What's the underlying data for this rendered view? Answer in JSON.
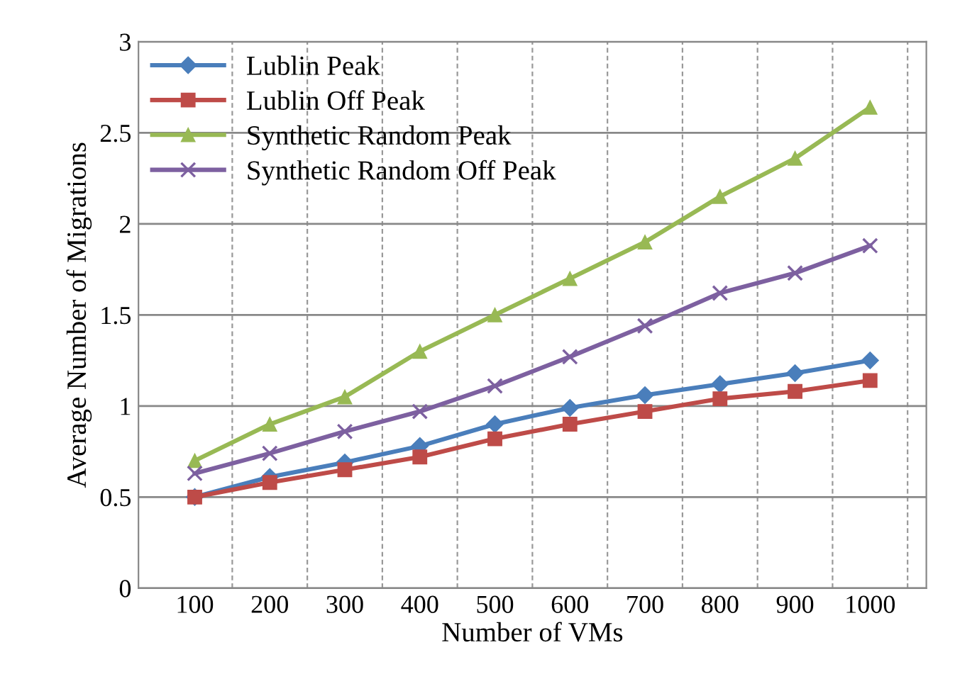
{
  "chart_data": {
    "type": "line",
    "xlabel": "Number of VMs",
    "ylabel": "Average Number of Migrations",
    "categories": [
      "100",
      "200",
      "300",
      "400",
      "500",
      "600",
      "700",
      "800",
      "900",
      "1000"
    ],
    "ylim": [
      0,
      3
    ],
    "yticks": [
      0,
      0.5,
      1,
      1.5,
      2,
      2.5,
      3
    ],
    "grid": true,
    "legend": "top left",
    "series": [
      {
        "name": "Lublin Peak",
        "color": "#4a7ebb",
        "marker": "diamond",
        "values": [
          0.5,
          0.61,
          0.69,
          0.78,
          0.9,
          0.99,
          1.06,
          1.12,
          1.18,
          1.25
        ]
      },
      {
        "name": "Lublin Off Peak",
        "color": "#be4b48",
        "marker": "square",
        "values": [
          0.5,
          0.58,
          0.65,
          0.72,
          0.82,
          0.9,
          0.97,
          1.04,
          1.08,
          1.14
        ]
      },
      {
        "name": "Synthetic Random Peak",
        "color": "#98b954",
        "marker": "triangle",
        "values": [
          0.7,
          0.9,
          1.05,
          1.3,
          1.5,
          1.7,
          1.9,
          2.15,
          2.36,
          2.64
        ]
      },
      {
        "name": "Synthetic Random Off Peak",
        "color": "#7d60a0",
        "marker": "cross",
        "values": [
          0.63,
          0.74,
          0.86,
          0.97,
          1.11,
          1.27,
          1.44,
          1.62,
          1.73,
          1.88
        ]
      }
    ]
  }
}
